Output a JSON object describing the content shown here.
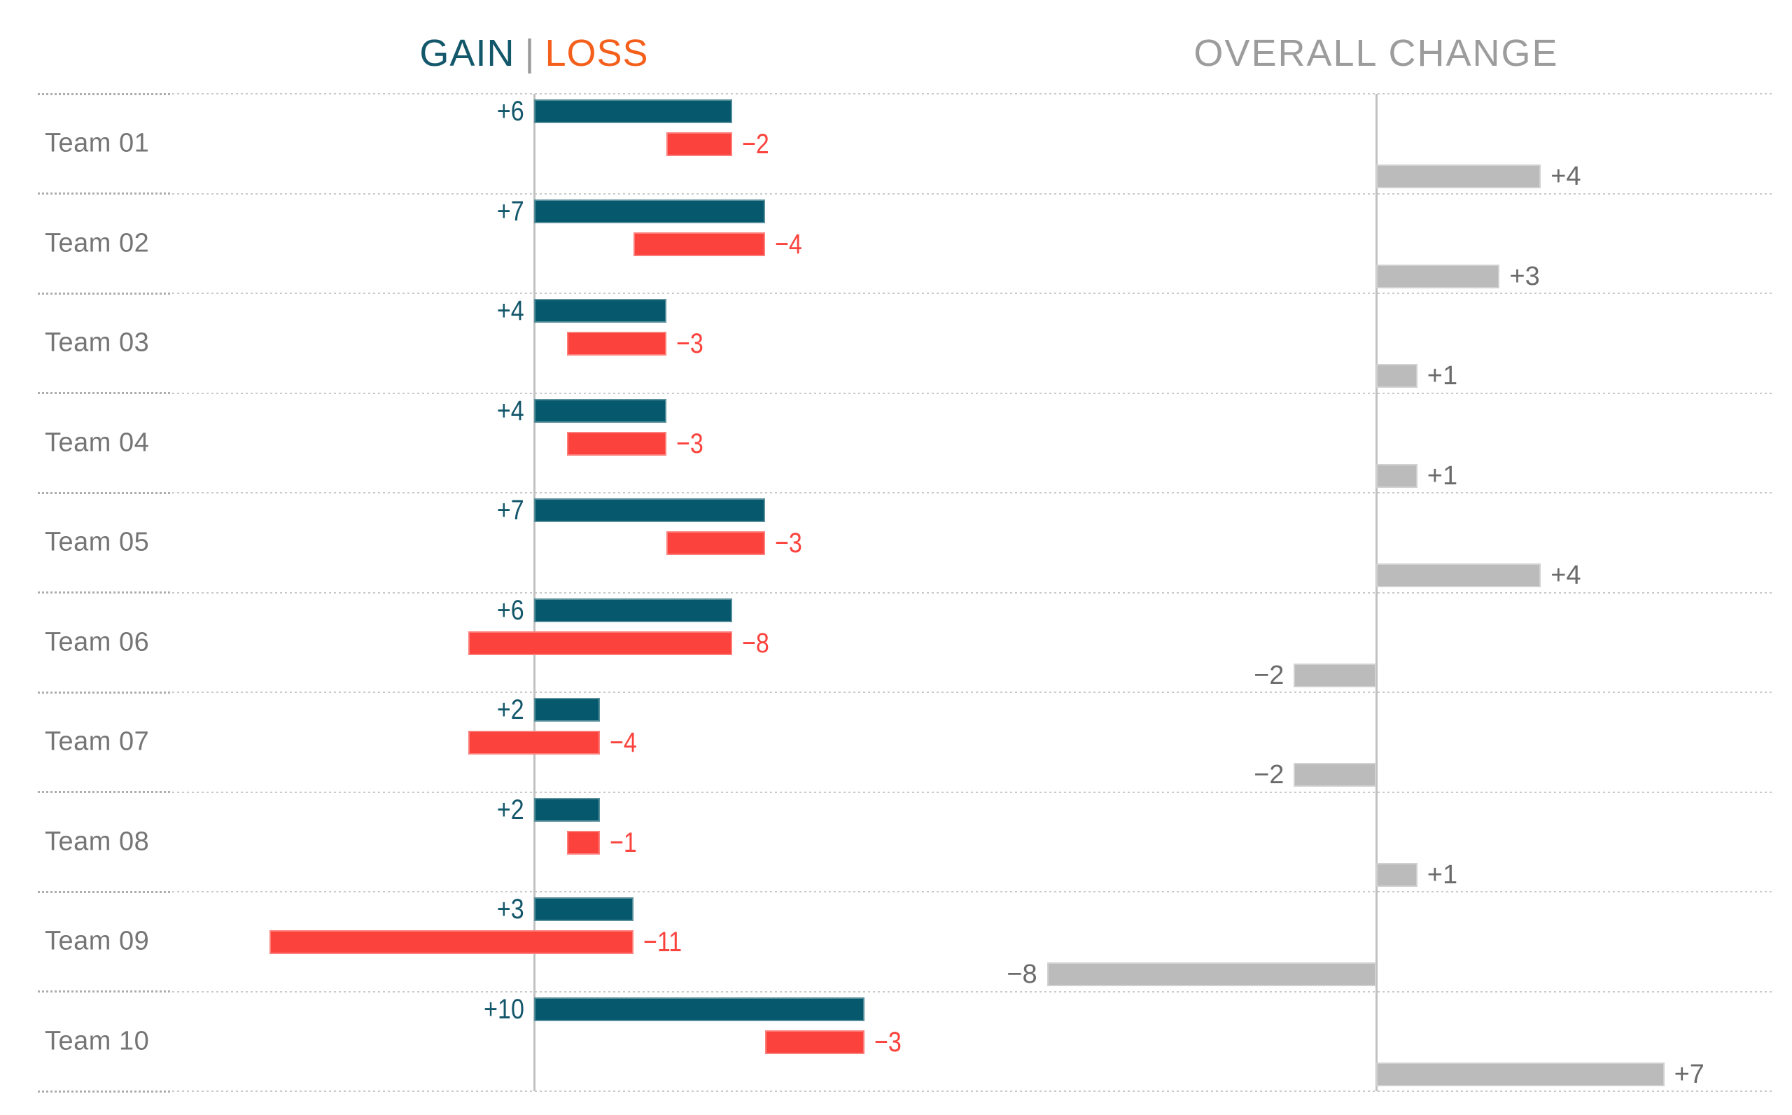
{
  "header": {
    "gain_label": "GAIN",
    "separator": "|",
    "loss_label": "LOSS",
    "overall_label": "OVERALL CHANGE"
  },
  "colors": {
    "gain_bar": "#06596C",
    "gain_text": "#13576B",
    "loss_bar": "#FB423C",
    "loss_text": "#FB423C",
    "loss_header": "#F4601B",
    "separator_gray": "#9A9A9A",
    "overall_bar": "#BBBBBB",
    "overall_text": "#6B6B6B",
    "team_label": "#757575",
    "overall_header": "#9C9C9C",
    "axis": "#C1C1C1",
    "gridline_light": "#C9C9C9",
    "gridline_dense": "#ADADAD"
  },
  "chart_data": {
    "type": "bar",
    "orientation": "horizontal",
    "categories": [
      "Team 01",
      "Team 02",
      "Team 03",
      "Team 04",
      "Team 05",
      "Team 06",
      "Team 07",
      "Team 08",
      "Team 09",
      "Team 10"
    ],
    "series": [
      {
        "name": "Gain",
        "values": [
          6,
          7,
          4,
          4,
          7,
          6,
          2,
          2,
          3,
          10
        ],
        "labels": [
          "+6",
          "+7",
          "+4",
          "+4",
          "+7",
          "+6",
          "+2",
          "+2",
          "+3",
          "+10"
        ]
      },
      {
        "name": "Loss",
        "values": [
          -2,
          -4,
          -3,
          -3,
          -3,
          -8,
          -4,
          -1,
          -11,
          -3
        ],
        "labels": [
          "−2",
          "−4",
          "−3",
          "−3",
          "−3",
          "−8",
          "−4",
          "−1",
          "−11",
          "−3"
        ]
      },
      {
        "name": "Overall Change",
        "values": [
          4,
          3,
          1,
          1,
          4,
          -2,
          -2,
          1,
          -8,
          7
        ],
        "labels": [
          "+4",
          "+3",
          "+1",
          "+1",
          "+4",
          "−2",
          "−2",
          "+1",
          "−8",
          "+7"
        ]
      }
    ],
    "left_panel": {
      "title": "GAIN | LOSS",
      "baseline": 0,
      "x_range": [
        -9,
        10
      ],
      "note": "loss bar drawn from (gain+loss) to gain"
    },
    "right_panel": {
      "title": "OVERALL CHANGE",
      "baseline": 0,
      "x_range": [
        -9,
        10
      ],
      "note": "overall = gain + loss"
    },
    "grid": "dotted horizontal row separators",
    "legend_position": "none"
  }
}
